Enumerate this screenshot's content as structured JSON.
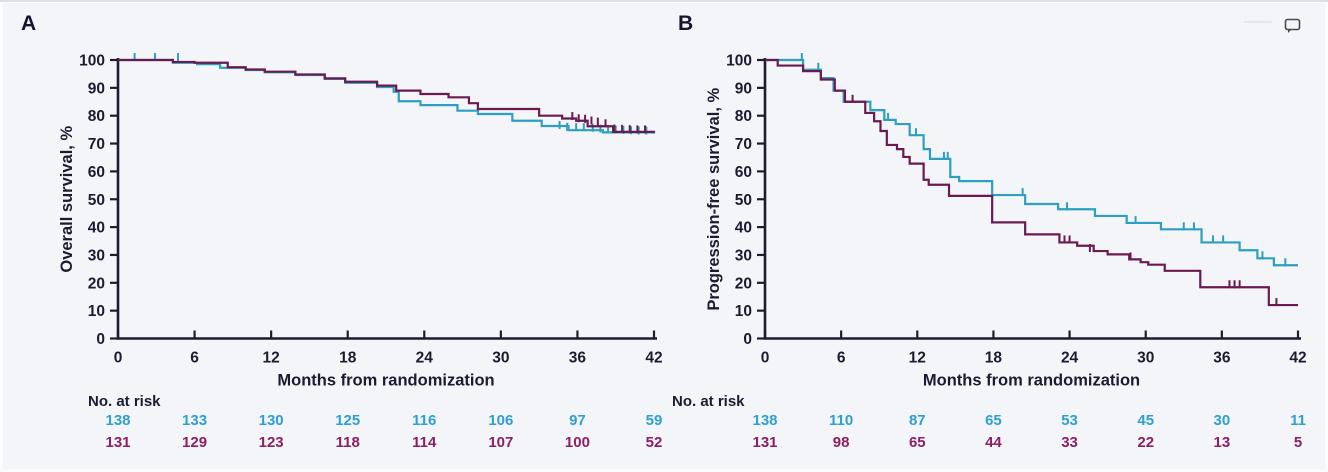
{
  "page": {
    "background_color": "#f3f5f9",
    "axis_color": "#1c1c30",
    "comment_icon": "speech-bubble-outline"
  },
  "chart_data": [
    {
      "panel_label": "A",
      "type": "line",
      "subtype": "kaplan-meier-step",
      "title": "",
      "xlabel": "Months from randomization",
      "ylabel": "Overall survival, %",
      "xlim": [
        0,
        42
      ],
      "ylim": [
        0,
        100
      ],
      "x_ticks": [
        0,
        6,
        12,
        18,
        24,
        30,
        36,
        42
      ],
      "y_ticks": [
        0,
        10,
        20,
        30,
        40,
        50,
        60,
        70,
        80,
        90,
        100
      ],
      "grid": "off",
      "legend": "none",
      "no_at_risk_label": "No. at risk",
      "series": [
        {
          "name": "teal-arm",
          "color": "#2d9fc0",
          "text_color": "#2f9fd2",
          "points": [
            [
              0,
              100
            ],
            [
              4.3,
              99
            ],
            [
              6.2,
              98.5
            ],
            [
              8,
              97.2
            ],
            [
              10,
              96.4
            ],
            [
              11.5,
              95.6
            ],
            [
              13.9,
              94.6
            ],
            [
              16.2,
              93.2
            ],
            [
              17.8,
              91.8
            ],
            [
              20.3,
              90.3
            ],
            [
              21.6,
              88.6
            ],
            [
              22,
              85.2
            ],
            [
              23.7,
              83.8
            ],
            [
              26.6,
              81.8
            ],
            [
              28.2,
              80.6
            ],
            [
              30.9,
              78.2
            ],
            [
              33.2,
              76.3
            ],
            [
              35.3,
              74.8
            ],
            [
              38,
              74
            ],
            [
              42,
              73.5
            ]
          ],
          "censor_marks": [
            [
              1.3,
              100
            ],
            [
              2.9,
              100
            ],
            [
              4.7,
              100
            ],
            [
              34.6,
              75.6
            ],
            [
              35.2,
              74.9
            ],
            [
              35.9,
              74.8
            ],
            [
              36.5,
              74.8
            ],
            [
              37.2,
              74.6
            ],
            [
              37.8,
              74.3
            ],
            [
              38.4,
              74
            ],
            [
              39,
              73.9
            ],
            [
              39.6,
              73.8
            ],
            [
              40.2,
              73.7
            ],
            [
              40.8,
              73.6
            ],
            [
              41.4,
              73.6
            ]
          ],
          "at_risk": [
            138,
            133,
            130,
            125,
            116,
            106,
            97,
            59
          ]
        },
        {
          "name": "maroon-arm",
          "color": "#6b1a4f",
          "text_color": "#8c2063",
          "points": [
            [
              0,
              100
            ],
            [
              4.3,
              99.3
            ],
            [
              6,
              99
            ],
            [
              8.6,
              97.4
            ],
            [
              10,
              96.6
            ],
            [
              11.5,
              95.8
            ],
            [
              13.9,
              94.8
            ],
            [
              16.2,
              93.4
            ],
            [
              17.8,
              92.2
            ],
            [
              20.3,
              90.8
            ],
            [
              21.8,
              89
            ],
            [
              23.7,
              87.8
            ],
            [
              25.9,
              86.6
            ],
            [
              27.5,
              84.5
            ],
            [
              28.2,
              82.4
            ],
            [
              33,
              80
            ],
            [
              34.8,
              79
            ],
            [
              35.9,
              78.2
            ],
            [
              36.8,
              76.2
            ],
            [
              38.8,
              74.2
            ],
            [
              42,
              74
            ]
          ],
          "censor_marks": [
            [
              35.6,
              78.8
            ],
            [
              36.1,
              78
            ],
            [
              36.6,
              77.8
            ],
            [
              37.1,
              77.2
            ],
            [
              37.6,
              76.8
            ],
            [
              38.2,
              76.2
            ],
            [
              38.9,
              74.3
            ],
            [
              39.5,
              74.2
            ],
            [
              40.1,
              74.1
            ],
            [
              40.7,
              74
            ],
            [
              41.3,
              74
            ]
          ],
          "at_risk": [
            131,
            129,
            123,
            118,
            114,
            107,
            100,
            52
          ]
        }
      ]
    },
    {
      "panel_label": "B",
      "type": "line",
      "subtype": "kaplan-meier-step",
      "title": "",
      "xlabel": "Months from randomization",
      "ylabel": "Progression-free survival, %",
      "xlim": [
        0,
        42
      ],
      "ylim": [
        0,
        100
      ],
      "x_ticks": [
        0,
        6,
        12,
        18,
        24,
        30,
        36,
        42
      ],
      "y_ticks": [
        0,
        10,
        20,
        30,
        40,
        50,
        60,
        70,
        80,
        90,
        100
      ],
      "grid": "off",
      "legend": "none",
      "no_at_risk_label": "No. at risk",
      "series": [
        {
          "name": "teal-arm",
          "color": "#2d9fc0",
          "text_color": "#2f9fd2",
          "points": [
            [
              0,
              100
            ],
            [
              3,
              96.5
            ],
            [
              4.4,
              93.5
            ],
            [
              5.4,
              89
            ],
            [
              6.2,
              85
            ],
            [
              8.3,
              82
            ],
            [
              9.4,
              78.5
            ],
            [
              10.3,
              77
            ],
            [
              11.4,
              73
            ],
            [
              12.5,
              68
            ],
            [
              13,
              64.5
            ],
            [
              14.6,
              58
            ],
            [
              15.3,
              56.5
            ],
            [
              17.9,
              51.5
            ],
            [
              20.5,
              48.3
            ],
            [
              23.1,
              46.4
            ],
            [
              26,
              44
            ],
            [
              28.5,
              41.5
            ],
            [
              31.2,
              39.2
            ],
            [
              34.4,
              34.5
            ],
            [
              37.4,
              31.7
            ],
            [
              38.8,
              28.8
            ],
            [
              40.1,
              26.3
            ],
            [
              42,
              26.3
            ]
          ],
          "censor_marks": [
            [
              2.9,
              100
            ],
            [
              4.2,
              96.5
            ],
            [
              9.7,
              78.5
            ],
            [
              11.9,
              73
            ],
            [
              14.1,
              64.5
            ],
            [
              14.4,
              64.5
            ],
            [
              20.3,
              51.5
            ],
            [
              23.8,
              46.4
            ],
            [
              29.2,
              41.5
            ],
            [
              33,
              39.2
            ],
            [
              33.8,
              39.2
            ],
            [
              35.3,
              34.5
            ],
            [
              36.1,
              34.5
            ],
            [
              39.2,
              28.8
            ],
            [
              41,
              26.3
            ]
          ],
          "at_risk": [
            138,
            110,
            87,
            65,
            53,
            45,
            30,
            11
          ]
        },
        {
          "name": "maroon-arm",
          "color": "#6b1a4f",
          "text_color": "#8c2063",
          "points": [
            [
              0,
              100
            ],
            [
              1,
              98
            ],
            [
              3,
              96
            ],
            [
              4.4,
              93
            ],
            [
              5.5,
              89
            ],
            [
              6.3,
              85
            ],
            [
              7.9,
              81
            ],
            [
              8.6,
              78
            ],
            [
              9.1,
              74.5
            ],
            [
              9.6,
              69.5
            ],
            [
              10.4,
              68
            ],
            [
              10.9,
              65.2
            ],
            [
              11.4,
              62.8
            ],
            [
              12.5,
              57
            ],
            [
              12.9,
              55.2
            ],
            [
              14.5,
              51.2
            ],
            [
              17.9,
              41.7
            ],
            [
              20.5,
              37.4
            ],
            [
              23.2,
              34.5
            ],
            [
              24.6,
              33.3
            ],
            [
              25.9,
              31.4
            ],
            [
              27,
              30.2
            ],
            [
              28.7,
              28.4
            ],
            [
              29.6,
              27.4
            ],
            [
              30.2,
              26.5
            ],
            [
              31.5,
              24.3
            ],
            [
              34.3,
              18.4
            ],
            [
              39.7,
              12
            ],
            [
              42,
              12
            ]
          ],
          "censor_marks": [
            [
              6.9,
              85
            ],
            [
              23.6,
              34.5
            ],
            [
              24,
              34.5
            ],
            [
              25.6,
              31.4
            ],
            [
              28.8,
              28.4
            ],
            [
              36.6,
              18.4
            ],
            [
              37,
              18.4
            ],
            [
              37.4,
              18.4
            ],
            [
              40.3,
              12
            ]
          ],
          "at_risk": [
            131,
            98,
            65,
            44,
            33,
            22,
            13,
            5
          ]
        }
      ]
    }
  ]
}
